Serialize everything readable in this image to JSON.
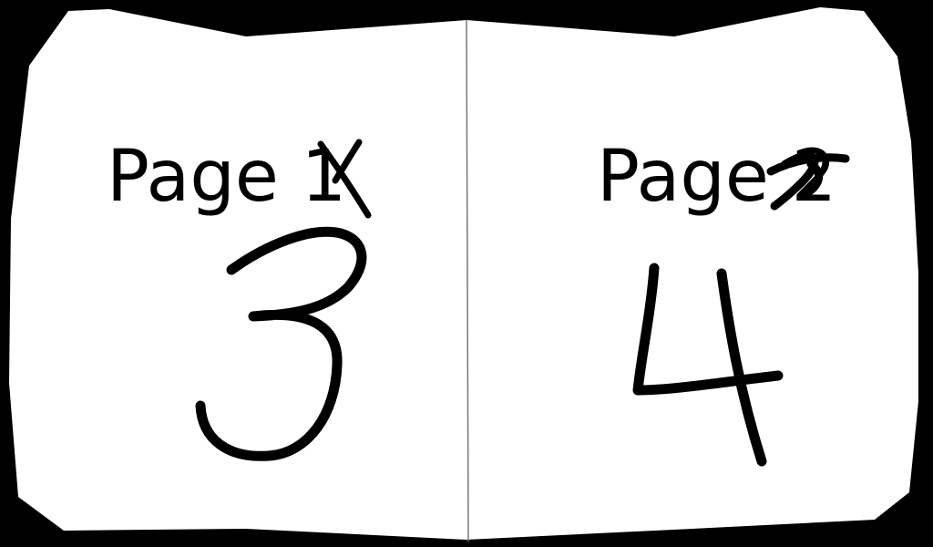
{
  "colors": {
    "background": "#000000",
    "paper": "#ffffff",
    "ink": "#000000",
    "fold_line": "#777777"
  },
  "left_page": {
    "printed_label": "Page 1",
    "handwritten_number": "3"
  },
  "right_page": {
    "printed_label": "Page 2",
    "handwritten_number": "4"
  }
}
